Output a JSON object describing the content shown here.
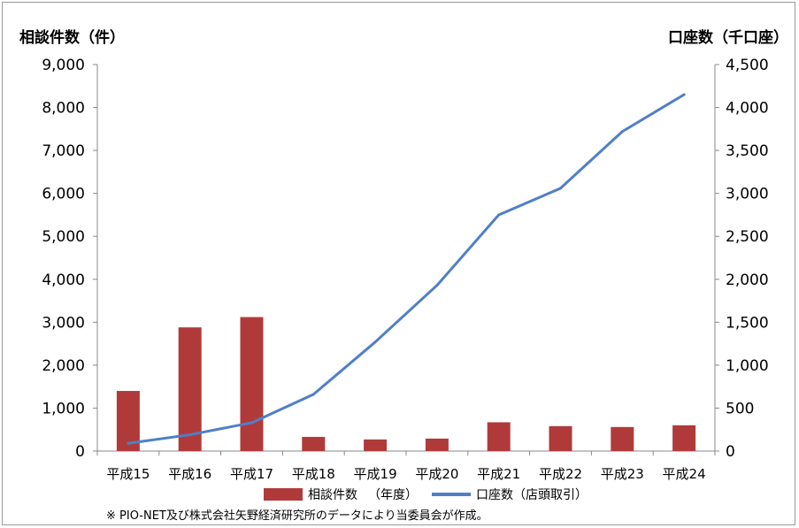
{
  "chart_data": {
    "type": "bar+line",
    "categories": [
      "平成15",
      "平成16",
      "平成17",
      "平成18",
      "平成19",
      "平成20",
      "平成21",
      "平成22",
      "平成23",
      "平成24"
    ],
    "series": [
      {
        "name": "相談件数",
        "type": "bar",
        "axis": "left",
        "values": [
          1400,
          2880,
          3120,
          330,
          270,
          290,
          670,
          580,
          560,
          600
        ]
      },
      {
        "name": "口座数（店頭取引）",
        "type": "line",
        "axis": "right",
        "values": [
          90,
          190,
          330,
          660,
          1270,
          1930,
          2750,
          3060,
          3720,
          4150
        ]
      }
    ],
    "y_left": {
      "title": "相談件数（件）",
      "range": [
        0,
        9000
      ],
      "ticks": [
        "0",
        "1,000",
        "2,000",
        "3,000",
        "4,000",
        "5,000",
        "6,000",
        "7,000",
        "8,000",
        "9,000"
      ]
    },
    "y_right": {
      "title": "口座数（千口座）",
      "range": [
        0,
        4500
      ],
      "ticks": [
        "0",
        "500",
        "1,000",
        "1,500",
        "2,000",
        "2,500",
        "3,000",
        "3,500",
        "4,000",
        "4,500"
      ]
    },
    "legend": {
      "placement": "bottom",
      "bar_note": "（年度）"
    },
    "note": "※ PIO-NET及び株式会社矢野経済研究所のデータにより当委員会が作成。",
    "grid": false,
    "colors": {
      "bar": "#b03a3a",
      "line": "#4f7fc8",
      "axis": "#888888"
    }
  }
}
